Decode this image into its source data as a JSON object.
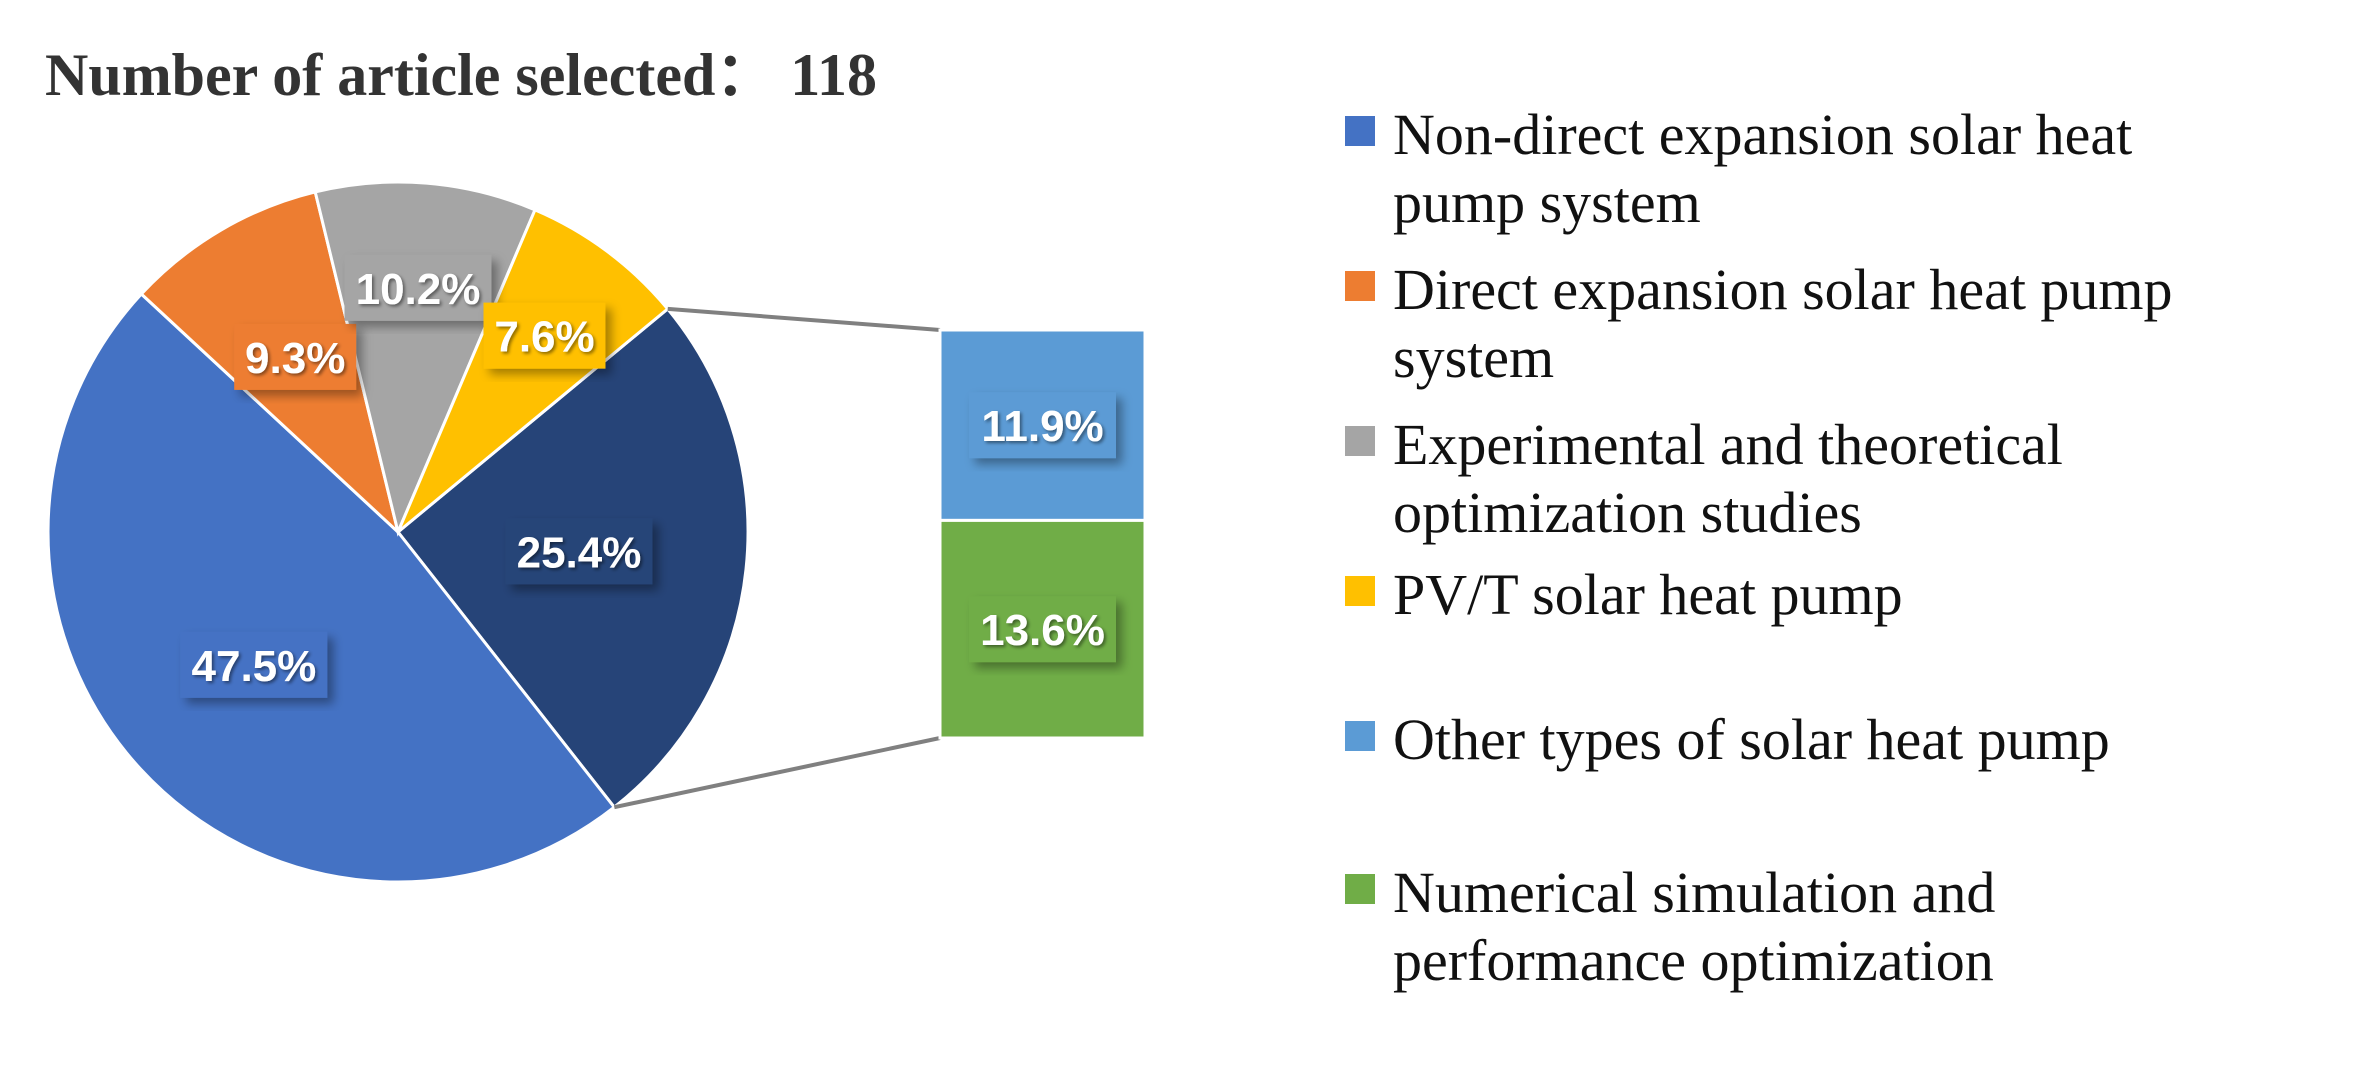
{
  "chart_data": {
    "type": "bar-of-pie",
    "title": "Number of article selected： 118",
    "pie": {
      "slices": [
        {
          "label": "25.4%",
          "value": 25.4,
          "color": "#264478",
          "series_key": "combined"
        },
        {
          "label": "47.5%",
          "value": 47.5,
          "color": "#4472C4",
          "series_key": "non_direct"
        },
        {
          "label": "9.3%",
          "value": 9.3,
          "color": "#ED7D31",
          "series_key": "direct"
        },
        {
          "label": "10.2%",
          "value": 10.2,
          "color": "#A5A5A5",
          "series_key": "experimental"
        },
        {
          "label": "7.6%",
          "value": 7.6,
          "color": "#FFC000",
          "series_key": "pvt"
        }
      ]
    },
    "bar": {
      "stack": [
        {
          "label": "11.9%",
          "value": 11.9,
          "color": "#5B9BD5",
          "series_key": "other"
        },
        {
          "label": "13.6%",
          "value": 13.6,
          "color": "#70AD47",
          "series_key": "numerical"
        }
      ]
    },
    "legend": {
      "position": "right",
      "entries": [
        {
          "key": "non_direct",
          "lines": [
            "Non-direct expansion solar heat",
            "pump system"
          ],
          "color": "#4472C4"
        },
        {
          "key": "direct",
          "lines": [
            "Direct expansion solar heat pump",
            "system"
          ],
          "color": "#ED7D31"
        },
        {
          "key": "experimental",
          "lines": [
            "Experimental and theoretical",
            "optimization studies"
          ],
          "color": "#A5A5A5"
        },
        {
          "key": "pvt",
          "lines": [
            "PV/T solar heat pump"
          ],
          "color": "#FFC000"
        },
        {
          "key": "other",
          "lines": [
            "Other types of solar heat pump"
          ],
          "color": "#5B9BD5"
        },
        {
          "key": "numerical",
          "lines": [
            "Numerical simulation and",
            "performance optimization"
          ],
          "color": "#70AD47"
        }
      ]
    }
  }
}
